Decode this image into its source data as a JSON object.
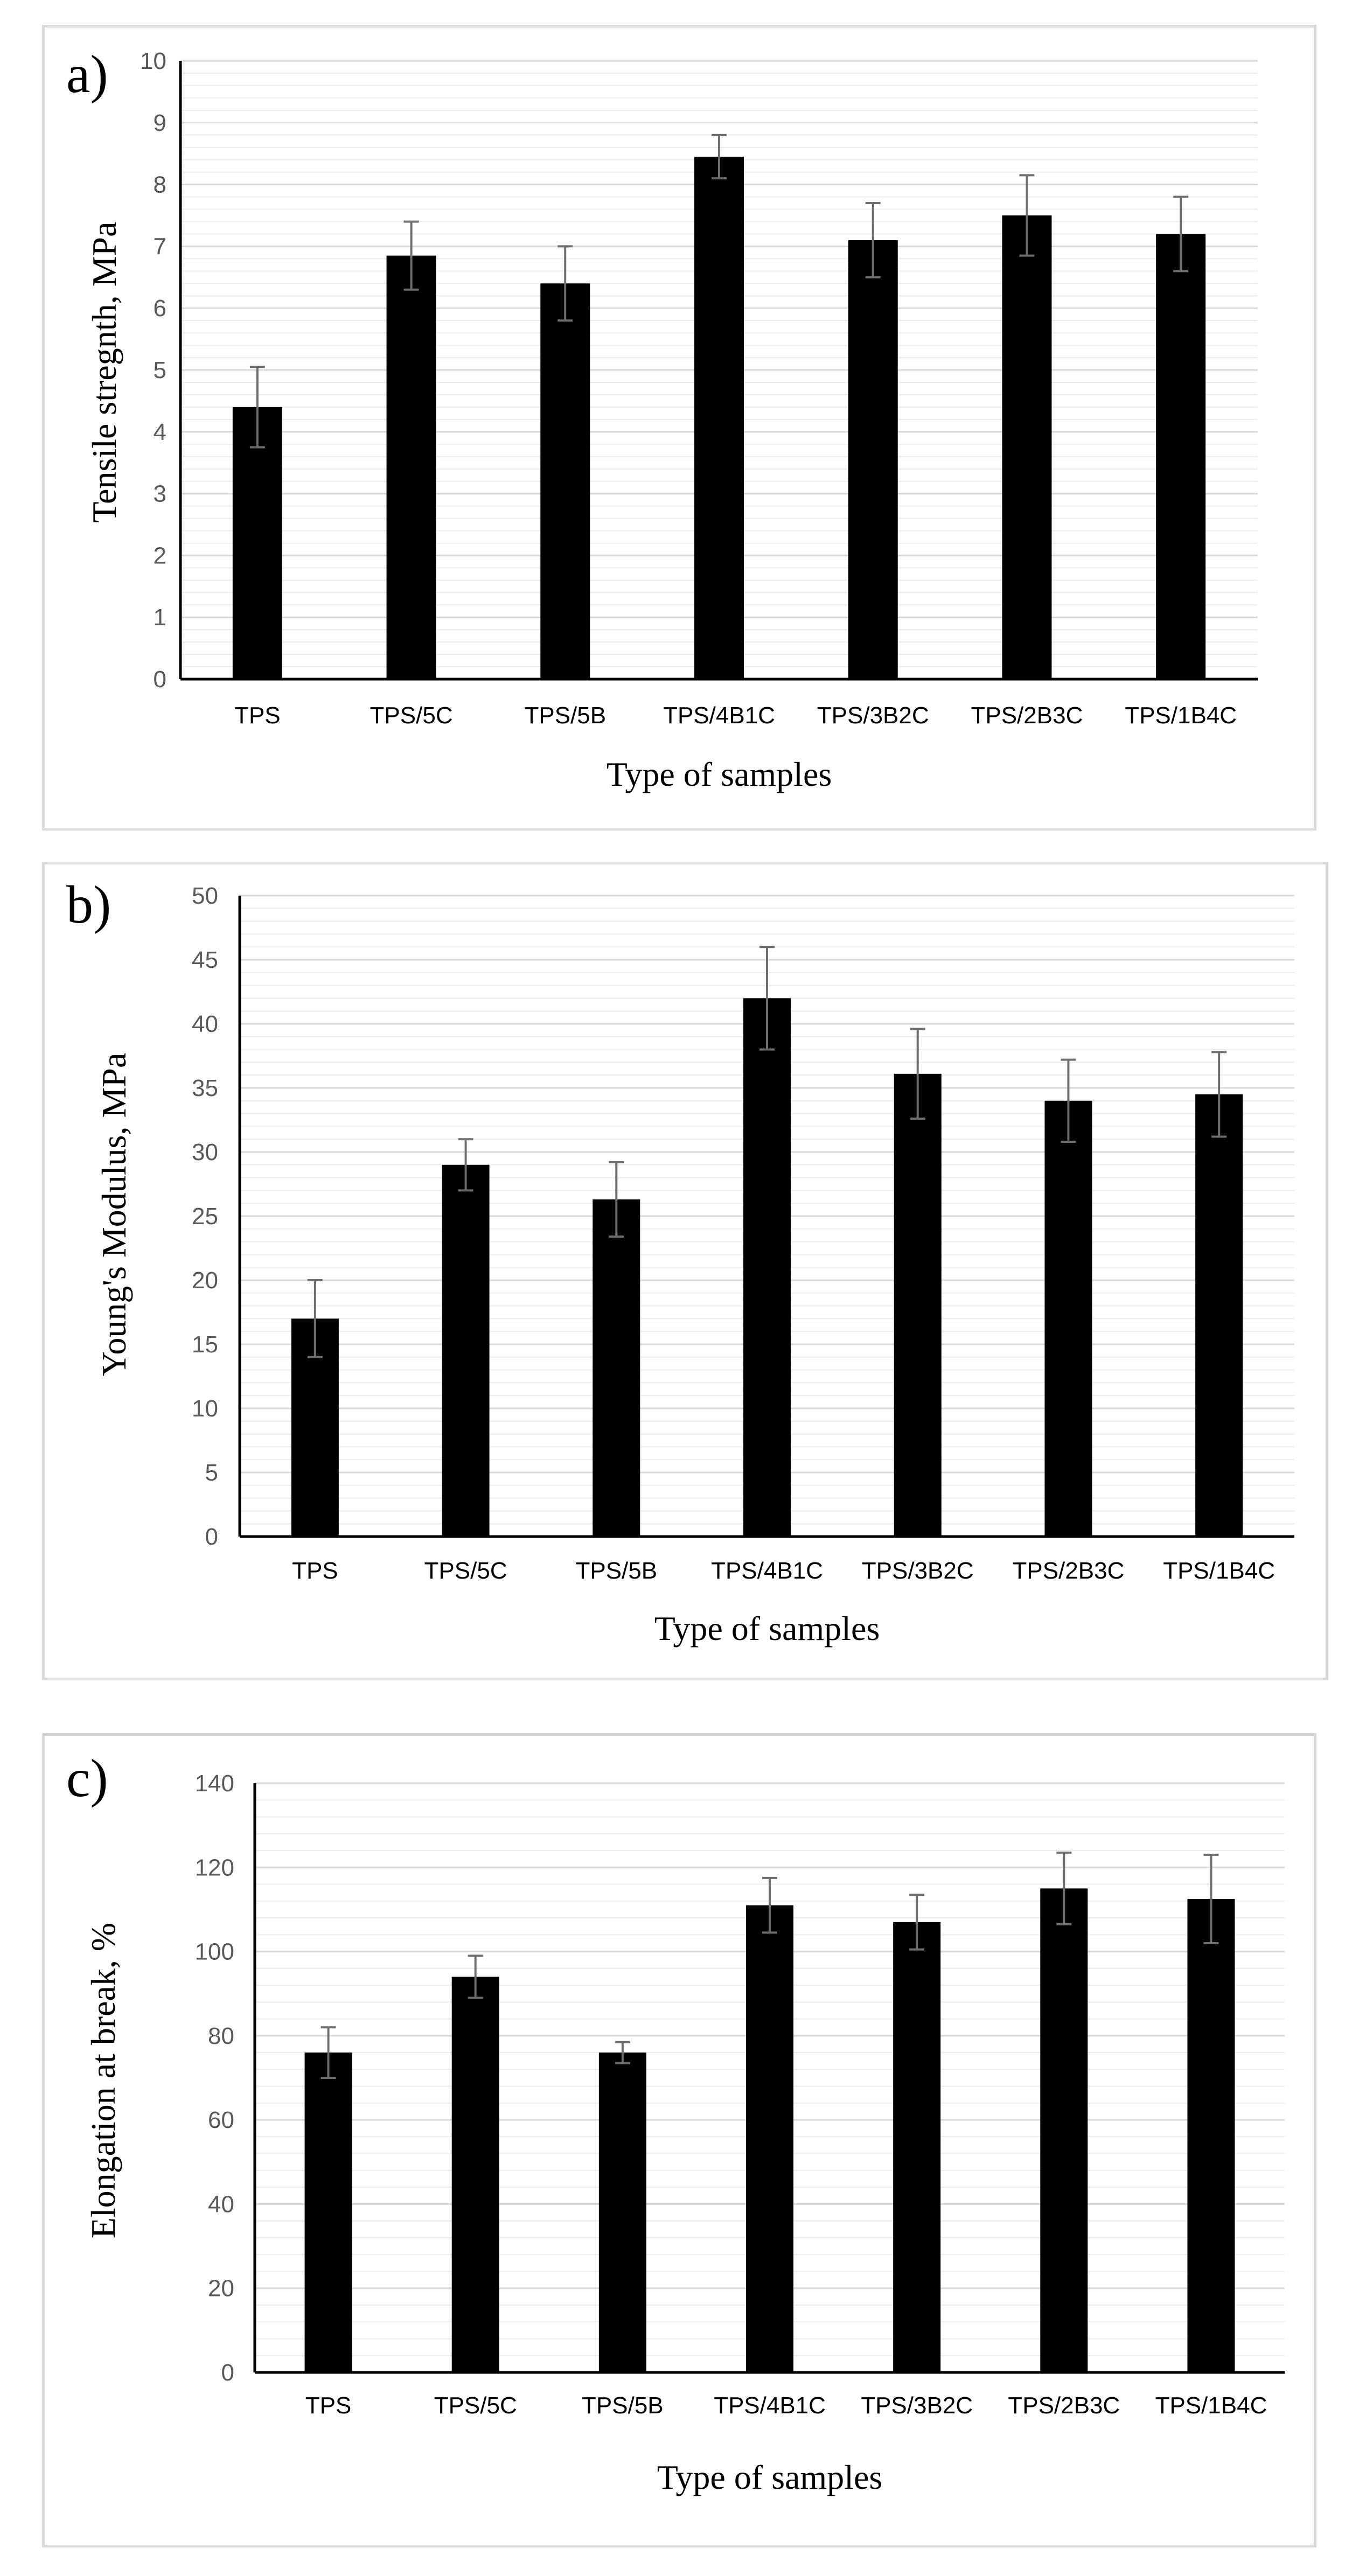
{
  "chart_data": [
    {
      "type": "bar",
      "panel_label": "a)",
      "categories": [
        "TPS",
        "TPS/5C",
        "TPS/5B",
        "TPS/4B1C",
        "TPS/3B2C",
        "TPS/2B3C",
        "TPS/1B4C"
      ],
      "values": [
        4.4,
        6.85,
        6.4,
        8.45,
        7.1,
        7.5,
        7.2
      ],
      "errors": [
        0.65,
        0.55,
        0.6,
        0.35,
        0.6,
        0.65,
        0.6
      ],
      "xlabel": "Type of samples",
      "ylabel": "Tensile stregnth, MPa",
      "ylim": [
        0,
        10
      ],
      "ytick_step": 1,
      "minor_step": 0.2,
      "grid": true,
      "y_ticks": [
        "0",
        "1",
        "2",
        "3",
        "4",
        "5",
        "6",
        "7",
        "8",
        "9",
        "10"
      ]
    },
    {
      "type": "bar",
      "panel_label": "b)",
      "categories": [
        "TPS",
        "TPS/5C",
        "TPS/5B",
        "TPS/4B1C",
        "TPS/3B2C",
        "TPS/2B3C",
        "TPS/1B4C"
      ],
      "values": [
        17,
        29,
        26.3,
        42,
        36.1,
        34,
        34.5
      ],
      "errors": [
        3,
        2,
        2.9,
        4,
        3.5,
        3.2,
        3.3
      ],
      "xlabel": "Type of samples",
      "ylabel": "Young's Modulus, MPa",
      "ylim": [
        0,
        50
      ],
      "ytick_step": 5,
      "minor_step": 1,
      "grid": true,
      "y_ticks": [
        "0",
        "5",
        "10",
        "15",
        "20",
        "25",
        "30",
        "35",
        "40",
        "45",
        "50"
      ]
    },
    {
      "type": "bar",
      "panel_label": "c)",
      "categories": [
        "TPS",
        "TPS/5C",
        "TPS/5B",
        "TPS/4B1C",
        "TPS/3B2C",
        "TPS/2B3C",
        "TPS/1B4C"
      ],
      "values": [
        76,
        94,
        76,
        111,
        107,
        115,
        112.5
      ],
      "errors": [
        6,
        5,
        2.5,
        6.5,
        6.5,
        8.5,
        10.5
      ],
      "xlabel": "Type of samples",
      "ylabel": "Elongation at break, %",
      "ylim": [
        0,
        140
      ],
      "ytick_step": 20,
      "minor_step": 4,
      "grid": true,
      "y_ticks": [
        "0",
        "20",
        "40",
        "60",
        "80",
        "100",
        "120",
        "140"
      ]
    }
  ],
  "colors": {
    "bar": "#000000",
    "error_bar": "#6e6e6e",
    "grid_major": "#d9d9d9",
    "grid_minor": "#ececec",
    "axis": "#000000",
    "tick_text": "#595959"
  }
}
